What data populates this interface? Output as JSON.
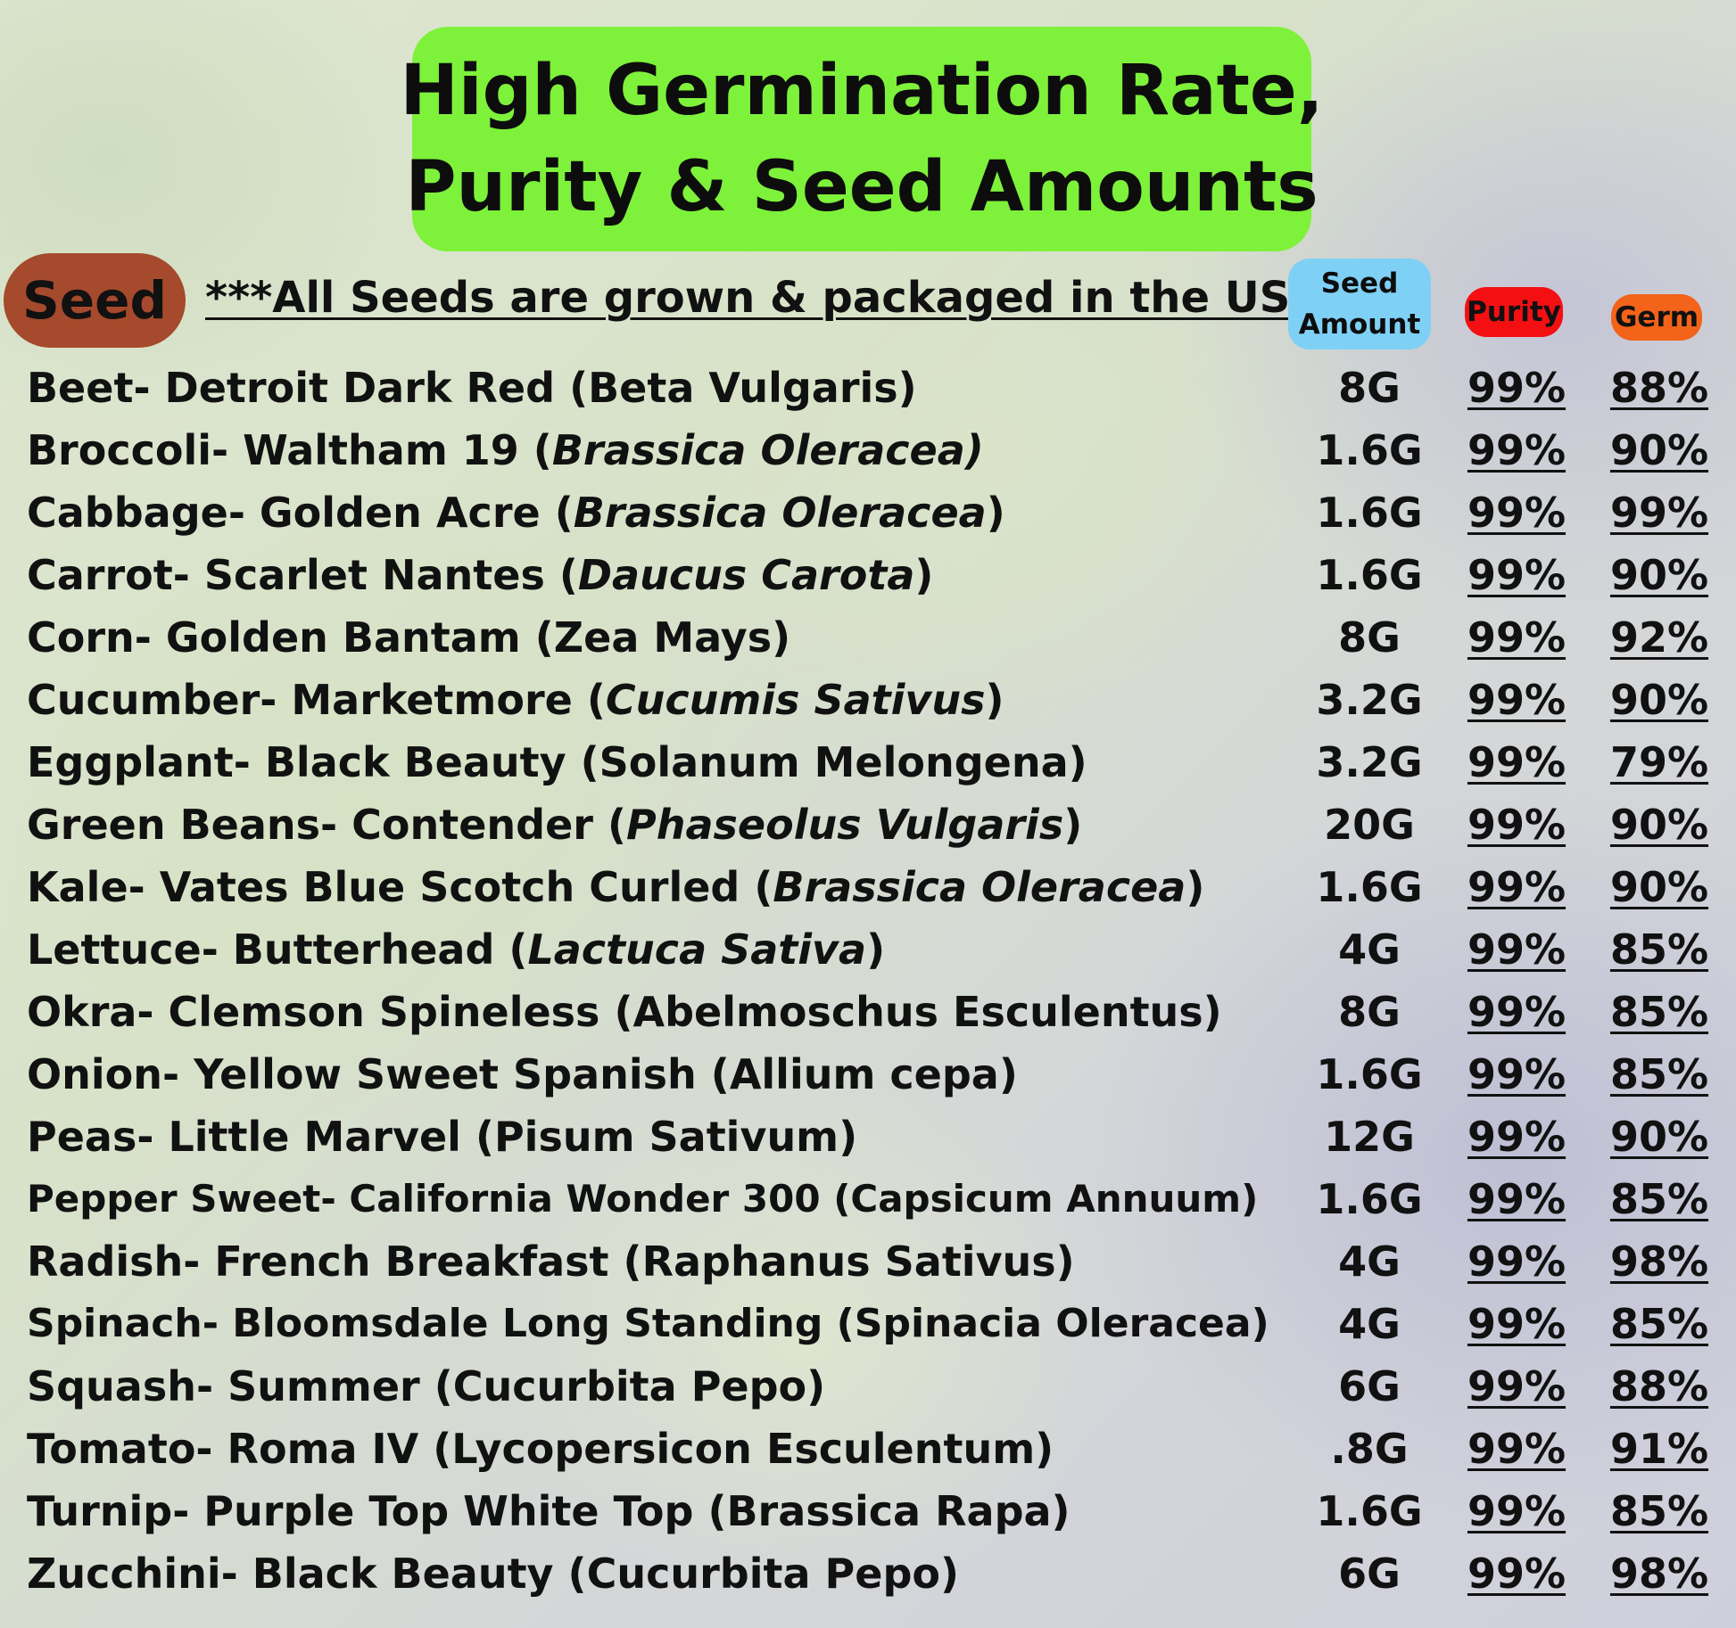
{
  "title": {
    "line1": "High Germination Rate,",
    "line2": "Purity & Seed Amounts"
  },
  "seed_label": "Seed",
  "usa_note": "***All Seeds are grown & packaged in the USA",
  "headers": {
    "amount_line1": "Seed",
    "amount_line2": "Amount",
    "purity": "Purity",
    "germ": "Germ"
  },
  "colors": {
    "title_bg": "#7ef13b",
    "seed_pill": "#a54a2c",
    "amount_header": "#7fd0f5",
    "purity_header": "#f30f12",
    "germ_header": "#f36319"
  },
  "rows": [
    {
      "common": "Beet- Detroit Dark Red (Beta Vulgaris)",
      "latin": "",
      "close": "",
      "amount": "8G",
      "purity": "99%",
      "germ": "88%"
    },
    {
      "common": "Broccoli- Waltham 19 (",
      "latin": "Brassica Oleracea)",
      "close": "",
      "amount": "1.6G",
      "purity": "99%",
      "germ": "90%"
    },
    {
      "common": "Cabbage- Golden Acre (",
      "latin": "Brassica Oleracea",
      "close": ")",
      "amount": "1.6G",
      "purity": "99%",
      "germ": "99%"
    },
    {
      "common": "Carrot- Scarlet Nantes (",
      "latin": "Daucus Carota",
      "close": ")",
      "amount": "1.6G",
      "purity": "99%",
      "germ": "90%"
    },
    {
      "common": "Corn- Golden Bantam (Zea Mays)",
      "latin": "",
      "close": "",
      "amount": "8G",
      "purity": "99%",
      "germ": "92%"
    },
    {
      "common": "Cucumber- Marketmore (",
      "latin": "Cucumis Sativus",
      "close": ")",
      "amount": "3.2G",
      "purity": "99%",
      "germ": "90%"
    },
    {
      "common": "Eggplant- Black Beauty (Solanum Melongena)",
      "latin": "",
      "close": "",
      "amount": "3.2G",
      "purity": "99%",
      "germ": "79%"
    },
    {
      "common": "Green Beans- Contender (",
      "latin": "Phaseolus Vulgaris",
      "close": ")",
      "amount": "20G",
      "purity": "99%",
      "germ": "90%"
    },
    {
      "common": "Kale- Vates Blue Scotch Curled (",
      "latin": "Brassica Oleracea",
      "close": ")",
      "amount": "1.6G",
      "purity": "99%",
      "germ": "90%"
    },
    {
      "common": "Lettuce- Butterhead (",
      "latin": "Lactuca Sativa",
      "close": ")",
      "amount": "4G",
      "purity": "99%",
      "germ": "85%"
    },
    {
      "common": "Okra- Clemson Spineless (Abelmoschus Esculentus)",
      "latin": "",
      "close": "",
      "amount": "8G",
      "purity": "99%",
      "germ": "85%"
    },
    {
      "common": "Onion- Yellow Sweet Spanish (Allium cepa)",
      "latin": "",
      "close": "",
      "amount": "1.6G",
      "purity": "99%",
      "germ": "85%"
    },
    {
      "common": "Peas- Little Marvel (Pisum Sativum)",
      "latin": "",
      "close": "",
      "amount": "12G",
      "purity": "99%",
      "germ": "90%"
    },
    {
      "common": "Pepper Sweet- California Wonder 300 (Capsicum Annuum)",
      "latin": "",
      "close": "",
      "amount": "1.6G",
      "purity": "99%",
      "germ": "85%"
    },
    {
      "common": "Radish- French Breakfast (Raphanus Sativus)",
      "latin": "",
      "close": "",
      "amount": "4G",
      "purity": "99%",
      "germ": "98%"
    },
    {
      "common": "Spinach- Bloomsdale Long Standing (Spinacia Oleracea)",
      "latin": "",
      "close": "",
      "amount": "4G",
      "purity": "99%",
      "germ": "85%"
    },
    {
      "common": "Squash- Summer (Cucurbita Pepo)",
      "latin": "",
      "close": "",
      "amount": "6G",
      "purity": "99%",
      "germ": "88%"
    },
    {
      "common": "Tomato- Roma IV (Lycopersicon Esculentum)",
      "latin": "",
      "close": "",
      "amount": ".8G",
      "purity": "99%",
      "germ": "91%"
    },
    {
      "common": "Turnip- Purple Top White Top (Brassica Rapa)",
      "latin": "",
      "close": "",
      "amount": "1.6G",
      "purity": "99%",
      "germ": "85%"
    },
    {
      "common": "Zucchini- Black Beauty (Cucurbita Pepo)",
      "latin": "",
      "close": "",
      "amount": "6G",
      "purity": "99%",
      "germ": "98%"
    }
  ]
}
